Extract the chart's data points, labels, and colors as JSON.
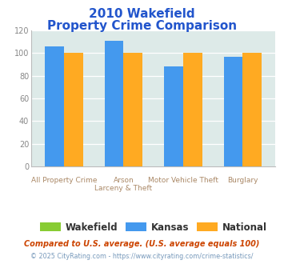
{
  "title_line1": "2010 Wakefield",
  "title_line2": "Property Crime Comparison",
  "x_labels_line1": [
    "All Property Crime",
    "Arson",
    "Motor Vehicle Theft",
    "Burglary"
  ],
  "x_labels_line2": [
    "",
    "Larceny & Theft",
    "",
    ""
  ],
  "series": {
    "Wakefield": [
      0,
      0,
      0,
      0
    ],
    "Kansas": [
      106,
      111,
      88,
      97
    ],
    "National": [
      100,
      100,
      100,
      100
    ]
  },
  "colors": {
    "Wakefield": "#88cc33",
    "Kansas": "#4499ee",
    "National": "#ffaa22"
  },
  "ylim": [
    0,
    120
  ],
  "yticks": [
    0,
    20,
    40,
    60,
    80,
    100,
    120
  ],
  "plot_bg_color": "#ddeae8",
  "title_color": "#2255cc",
  "xlabel_color": "#aa8866",
  "footnote1": "Compared to U.S. average. (U.S. average equals 100)",
  "footnote2": "© 2025 CityRating.com - https://www.cityrating.com/crime-statistics/",
  "footnote1_color": "#cc4400",
  "footnote2_color": "#7799bb"
}
